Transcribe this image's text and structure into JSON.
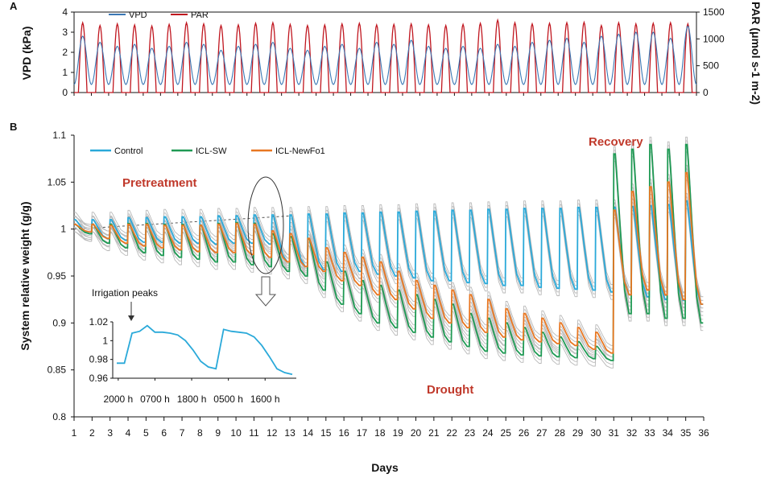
{
  "chart_data": [
    {
      "panel": "A",
      "type": "line",
      "title": "",
      "xlabel": "",
      "ylabel": "VPD (kPa)",
      "y2label": "PAR (μmol s-1 m-2)",
      "ylim": [
        0,
        4
      ],
      "y2lim": [
        0,
        1500
      ],
      "yticks": [
        "0",
        "1",
        "2",
        "3",
        "4"
      ],
      "y2ticks": [
        "0",
        "500",
        "1000",
        "1500"
      ],
      "xlim": [
        1,
        36
      ],
      "series": [
        {
          "name": "VPD",
          "color": "#3b78b5",
          "axis": "left",
          "daily_peak": [
            2.8,
            2.5,
            2.3,
            2.4,
            2.2,
            2.3,
            2.5,
            2.4,
            2.1,
            2.3,
            2.4,
            2.5,
            2.2,
            2.1,
            2.3,
            2.4,
            2.2,
            2.5,
            2.4,
            2.6,
            2.3,
            2.2,
            2.3,
            2.2,
            2.4,
            2.3,
            2.5,
            2.6,
            2.7,
            2.5,
            2.8,
            2.9,
            3.0,
            3.0,
            2.7,
            3.3
          ],
          "daily_min": 0.4
        },
        {
          "name": "PAR",
          "color": "#c0161f",
          "axis": "right",
          "daily_peak": [
            1300,
            1250,
            1280,
            1260,
            1240,
            1270,
            1300,
            1280,
            1250,
            1260,
            1290,
            1300,
            1270,
            1250,
            1260,
            1280,
            1290,
            1260,
            1270,
            1280,
            1260,
            1250,
            1270,
            1290,
            1350,
            1300,
            1280,
            1290,
            1300,
            1310,
            1250,
            1300,
            1280,
            1290,
            1300,
            1280
          ],
          "daily_min": 0
        }
      ],
      "legend": "top-left"
    },
    {
      "panel": "B",
      "type": "line",
      "title": "",
      "xlabel": "Days",
      "ylabel": "System relative weight (g/g)",
      "ylim": [
        0.8,
        1.1
      ],
      "yticks": [
        "0.8",
        "0.85",
        "0.9",
        "0.95",
        "1",
        "1.05",
        "1.1"
      ],
      "x_ticks": [
        "1",
        "2",
        "3",
        "4",
        "5",
        "6",
        "7",
        "8",
        "9",
        "10",
        "11",
        "12",
        "13",
        "14",
        "15",
        "16",
        "17",
        "18",
        "19",
        "20",
        "21",
        "22",
        "23",
        "24",
        "25",
        "26",
        "27",
        "28",
        "29",
        "30",
        "31",
        "32",
        "33",
        "34",
        "35",
        "36"
      ],
      "legend": "top-left",
      "series": [
        {
          "name": "Control",
          "color": "#2aa9d9",
          "peak": [
            1.01,
            1.01,
            1.01,
            1.012,
            1.012,
            1.013,
            1.013,
            1.013,
            1.014,
            1.014,
            1.015,
            1.015,
            1.015,
            1.016,
            1.016,
            1.017,
            1.017,
            1.018,
            1.018,
            1.019,
            1.019,
            1.02,
            1.02,
            1.021,
            1.021,
            1.022,
            1.022,
            1.022,
            1.023,
            1.023,
            1.023,
            1.024,
            1.025,
            1.026,
            1.03
          ],
          "trough": [
            0.995,
            0.99,
            0.988,
            0.986,
            0.986,
            0.985,
            0.985,
            0.984,
            0.985,
            0.985,
            0.984,
            0.965,
            0.96,
            0.957,
            0.955,
            0.955,
            0.952,
            0.95,
            0.948,
            0.945,
            0.945,
            0.943,
            0.942,
            0.94,
            0.94,
            0.938,
            0.937,
            0.936,
            0.935,
            0.933,
            0.93,
            0.928,
            0.925,
            0.924,
            0.92
          ]
        },
        {
          "name": "ICL-SW",
          "color": "#1f9a54",
          "peak": [
            1.005,
            1.005,
            1.005,
            1.006,
            1.006,
            1.005,
            1.005,
            1.004,
            1.006,
            1.007,
            1.006,
            0.995,
            0.992,
            0.99,
            0.965,
            0.955,
            0.945,
            0.94,
            0.935,
            0.93,
            0.925,
            0.92,
            0.91,
            0.905,
            0.9,
            0.895,
            0.89,
            0.885,
            0.88,
            0.875,
            1.08,
            1.085,
            1.09,
            1.085,
            1.09
          ],
          "trough": [
            0.995,
            0.985,
            0.98,
            0.975,
            0.972,
            0.97,
            0.968,
            0.965,
            0.965,
            0.962,
            0.96,
            0.955,
            0.95,
            0.935,
            0.92,
            0.91,
            0.9,
            0.895,
            0.89,
            0.885,
            0.88,
            0.875,
            0.87,
            0.868,
            0.866,
            0.865,
            0.864,
            0.863,
            0.862,
            0.86,
            0.91,
            0.91,
            0.905,
            0.905,
            0.9
          ]
        },
        {
          "name": "ICL-NewFo1",
          "color": "#e87722",
          "peak": [
            1.005,
            1.005,
            1.004,
            1.005,
            1.005,
            1.004,
            1.004,
            1.004,
            1.005,
            1.006,
            1.005,
            0.998,
            0.995,
            0.99,
            0.98,
            0.975,
            0.97,
            0.965,
            0.955,
            0.945,
            0.94,
            0.935,
            0.93,
            0.925,
            0.915,
            0.91,
            0.905,
            0.9,
            0.895,
            0.89,
            1.02,
            1.04,
            1.045,
            1.05,
            1.06
          ],
          "trough": [
            0.997,
            0.99,
            0.985,
            0.982,
            0.98,
            0.978,
            0.976,
            0.975,
            0.975,
            0.973,
            0.97,
            0.965,
            0.96,
            0.955,
            0.945,
            0.94,
            0.93,
            0.925,
            0.915,
            0.905,
            0.9,
            0.895,
            0.89,
            0.885,
            0.882,
            0.88,
            0.878,
            0.876,
            0.872,
            0.868,
            0.93,
            0.935,
            0.93,
            0.925,
            0.92
          ]
        }
      ],
      "annotations": [
        "Pretreatment",
        "Recovery",
        "Drought"
      ],
      "inset": {
        "label": "Irrigation peaks",
        "yticks": [
          "0.96",
          "0.98",
          "1",
          "1.02"
        ],
        "ylim": [
          0.96,
          1.02
        ],
        "xticks": [
          "2000 h",
          "0700 h",
          "1800 h",
          "0500 h",
          "1600 h"
        ],
        "series": [
          {
            "name": "Control",
            "color": "#2aa9d9",
            "values": [
              0.976,
              0.976,
              1.008,
              1.01,
              1.016,
              1.009,
              1.009,
              1.008,
              1.006,
              1.0,
              0.99,
              0.978,
              0.972,
              0.97,
              1.012,
              1.01,
              1.009,
              1.008,
              1.004,
              0.995,
              0.983,
              0.97,
              0.966,
              0.964
            ]
          }
        ]
      }
    }
  ],
  "figure_text": {
    "panel_a_letter": "A",
    "panel_b_letter": "B"
  }
}
